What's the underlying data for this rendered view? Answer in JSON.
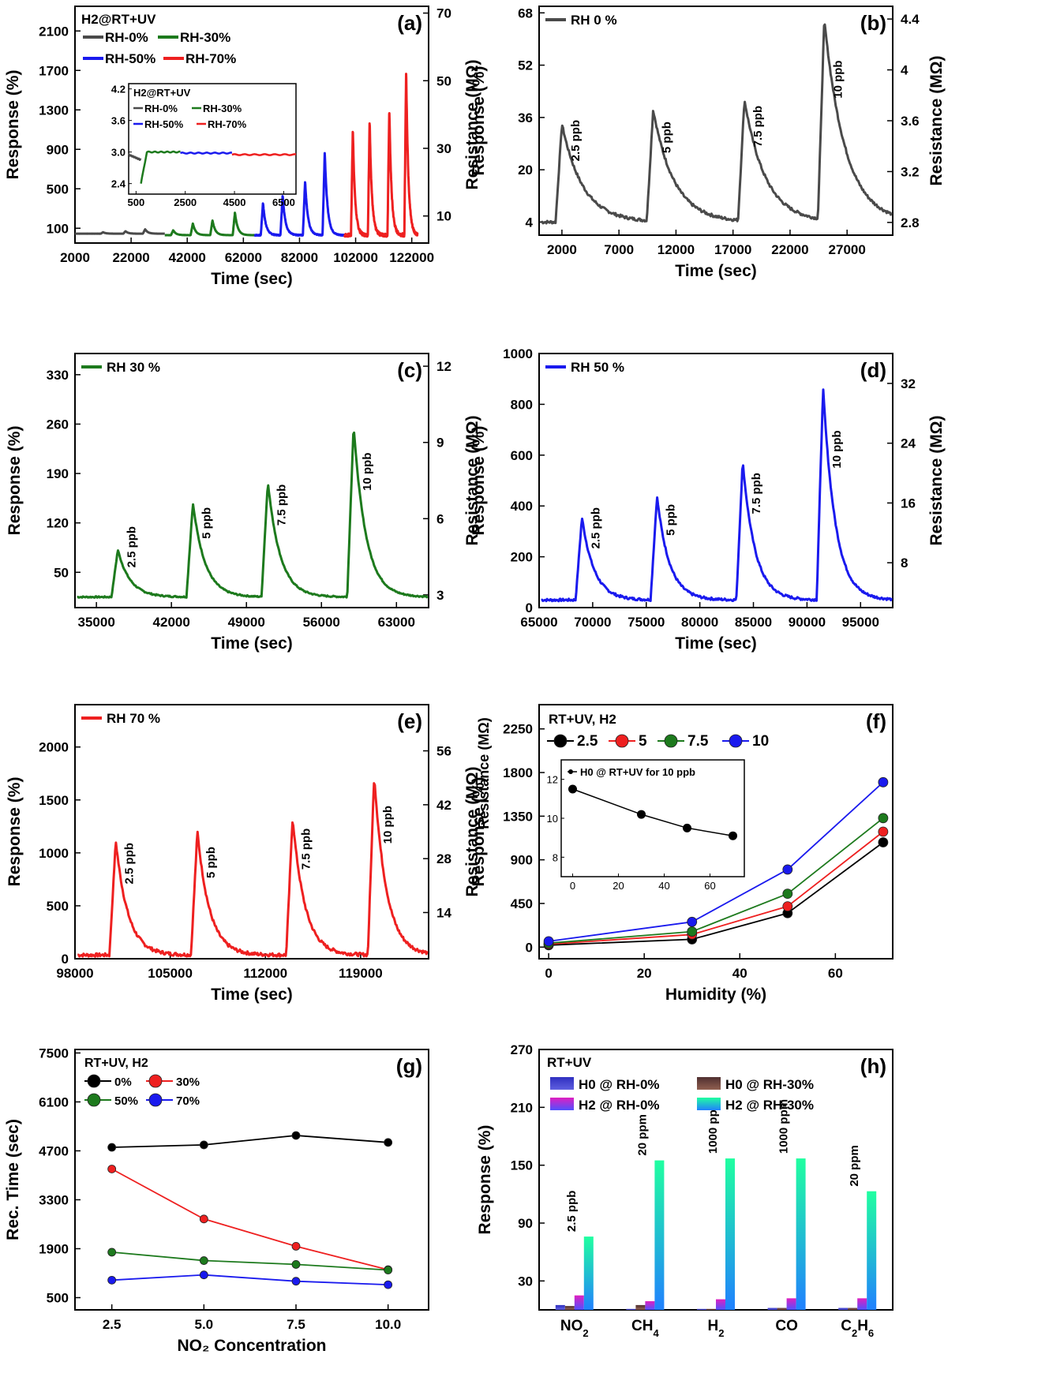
{
  "colors": {
    "c0": "#4a4a4a",
    "c30": "#1d7a1d",
    "c50": "#1a1aee",
    "c70": "#ee2020",
    "black": "#000000"
  },
  "chart_data": [
    {
      "id": "a",
      "type": "line",
      "panel_label": "(a)",
      "title": "H2@RT+UV",
      "xlabel": "Time (sec)",
      "ylabel": "Response (%)",
      "y2label": "Resistance (MΩ)",
      "xlim": [
        2000,
        128000
      ],
      "ylim": [
        -50,
        2350
      ],
      "y2lim": [
        2,
        72
      ],
      "xticks": [
        2000,
        22000,
        42000,
        62000,
        82000,
        102000,
        122000
      ],
      "yticks": [
        100,
        500,
        900,
        1300,
        1700,
        2100
      ],
      "y2ticks": [
        10,
        30,
        50,
        70
      ],
      "legend": [
        "RH-0%",
        "RH-30%",
        "RH-50%",
        "RH-70%"
      ],
      "legend_colors": [
        "c0",
        "c30",
        "c50",
        "c70"
      ],
      "segments": [
        {
          "name": "RH-0%",
          "color": "c0",
          "x0": 2000,
          "x1": 34000,
          "base": 45,
          "peaks": [
            [
              12000,
              60
            ],
            [
              20000,
              70
            ],
            [
              27000,
              90
            ]
          ]
        },
        {
          "name": "RH-30%",
          "color": "c30",
          "x0": 34000,
          "x1": 66000,
          "base": 30,
          "peaks": [
            [
              37000,
              80
            ],
            [
              44000,
              150
            ],
            [
              51000,
              180
            ],
            [
              59000,
              260
            ]
          ]
        },
        {
          "name": "RH-50%",
          "color": "c50",
          "x0": 66000,
          "x1": 98000,
          "base": 30,
          "peaks": [
            [
              69000,
              360
            ],
            [
              76000,
              440
            ],
            [
              84000,
              580
            ],
            [
              91000,
              870
            ]
          ]
        },
        {
          "name": "RH-70%",
          "color": "c70",
          "x0": 98000,
          "x1": 124000,
          "base": 30,
          "peaks": [
            [
              101000,
              1120
            ],
            [
              107000,
              1200
            ],
            [
              114000,
              1330
            ],
            [
              120000,
              1720
            ]
          ]
        }
      ],
      "inset": {
        "title": "H2@RT+UV",
        "legend": [
          "RH-0%",
          "RH-30%",
          "RH-50%",
          "RH-70%"
        ],
        "xlim": [
          200,
          7000
        ],
        "ylim": [
          2.2,
          4.3
        ],
        "xticks": [
          500,
          2500,
          4500,
          6500
        ],
        "yticks": [
          2.4,
          3.0,
          3.6,
          4.2
        ]
      }
    },
    {
      "id": "b",
      "type": "line",
      "panel_label": "(b)",
      "series_name": "RH 0 %",
      "color": "c0",
      "xlabel": "Time (sec)",
      "ylabel": "Response (%)",
      "y2label": "Resistance (MΩ)",
      "xlim": [
        0,
        31000
      ],
      "ylim": [
        0,
        70
      ],
      "y2lim": [
        2.7,
        4.5
      ],
      "xticks": [
        2000,
        7000,
        12000,
        17000,
        22000,
        27000
      ],
      "yticks": [
        4,
        20,
        36,
        52,
        68
      ],
      "y2ticks": [
        2.8,
        3.2,
        3.6,
        4.0,
        4.4
      ],
      "base": 4,
      "peaks": [
        [
          2000,
          34
        ],
        [
          10000,
          38
        ],
        [
          18000,
          41
        ],
        [
          25000,
          65
        ]
      ],
      "annotations": [
        "2.5 ppb",
        "5 ppb",
        "7.5 ppb",
        "10 ppb"
      ]
    },
    {
      "id": "c",
      "type": "line",
      "panel_label": "(c)",
      "series_name": "RH 30 %",
      "color": "c30",
      "xlabel": "Time (sec)",
      "ylabel": "Response (%)",
      "y2label": "Resistance (MΩ)",
      "xlim": [
        33000,
        66000
      ],
      "ylim": [
        0,
        360
      ],
      "y2lim": [
        2.5,
        12.5
      ],
      "xticks": [
        35000,
        42000,
        49000,
        56000,
        63000
      ],
      "yticks": [
        50,
        120,
        190,
        260,
        330
      ],
      "y2ticks": [
        3,
        6,
        9,
        12
      ],
      "base": 15,
      "peaks": [
        [
          37000,
          82
        ],
        [
          44000,
          148
        ],
        [
          51000,
          178
        ],
        [
          59000,
          258
        ]
      ],
      "annotations": [
        "2.5 ppb",
        "5 ppb",
        "7.5 ppb",
        "10 ppb"
      ]
    },
    {
      "id": "d",
      "type": "line",
      "panel_label": "(d)",
      "series_name": "RH 50 %",
      "color": "c50",
      "xlabel": "Time (sec)",
      "ylabel": "Response (%)",
      "y2label": "Resistance (MΩ)",
      "xlim": [
        65000,
        98000
      ],
      "ylim": [
        0,
        1000
      ],
      "y2lim": [
        2,
        36
      ],
      "xticks": [
        65000,
        70000,
        75000,
        80000,
        85000,
        90000,
        95000
      ],
      "yticks": [
        0,
        200,
        400,
        600,
        800,
        1000
      ],
      "y2ticks": [
        8,
        16,
        24,
        32
      ],
      "base": 30,
      "peaks": [
        [
          69000,
          355
        ],
        [
          76000,
          438
        ],
        [
          84000,
          575
        ],
        [
          91500,
          865
        ]
      ],
      "annotations": [
        "2.5 ppb",
        "5 ppb",
        "7.5 ppb",
        "10 ppb"
      ]
    },
    {
      "id": "e",
      "type": "line",
      "panel_label": "(e)",
      "series_name": "RH 70 %",
      "color": "c70",
      "xlabel": "Time (sec)",
      "ylabel": "Response (%)",
      "y2label": "Resistance (MΩ)",
      "xlim": [
        98000,
        124000
      ],
      "ylim": [
        0,
        2400
      ],
      "y2lim": [
        2,
        68
      ],
      "xticks": [
        98000,
        105000,
        112000,
        119000
      ],
      "yticks": [
        0,
        500,
        1000,
        1500,
        2000
      ],
      "y2ticks": [
        14,
        28,
        42,
        56
      ],
      "base": 35,
      "peaks": [
        [
          101000,
          1115
        ],
        [
          107000,
          1205
        ],
        [
          114000,
          1335
        ],
        [
          120000,
          1730
        ]
      ],
      "annotations": [
        "2.5 ppb",
        "5 ppb",
        "7.5 ppb",
        "10 ppb"
      ]
    },
    {
      "id": "f",
      "type": "line",
      "panel_label": "(f)",
      "title": "RT+UV, H2",
      "xlabel": "Humidity (%)",
      "ylabel": "Response (%)",
      "xlim": [
        -2,
        72
      ],
      "ylim": [
        -120,
        2500
      ],
      "xticks": [
        0,
        20,
        40,
        60
      ],
      "yticks": [
        0,
        450,
        900,
        1350,
        1800,
        2250
      ],
      "x": [
        0,
        30,
        50,
        70
      ],
      "series": [
        {
          "name": "2.5",
          "color": "black",
          "values": [
            20,
            80,
            350,
            1080
          ]
        },
        {
          "name": "5",
          "color": "c70",
          "values": [
            30,
            130,
            420,
            1190
          ]
        },
        {
          "name": "7.5",
          "color": "c30",
          "values": [
            40,
            160,
            550,
            1330
          ]
        },
        {
          "name": "10",
          "color": "c50",
          "values": [
            60,
            260,
            800,
            1700
          ]
        }
      ],
      "inset": {
        "legend": "H0 @ RT+UV  for 10 ppb",
        "x": [
          0,
          30,
          50,
          70
        ],
        "values": [
          11.5,
          10.2,
          9.5,
          9.1
        ],
        "xlim": [
          -5,
          75
        ],
        "ylim": [
          7,
          13
        ],
        "xticks": [
          0,
          20,
          40,
          60
        ],
        "yticks": [
          8,
          10,
          12
        ],
        "ylabel": "Resistance (MΩ)"
      }
    },
    {
      "id": "g",
      "type": "line",
      "panel_label": "(g)",
      "title": "RT+UV, H2",
      "xlabel": "NO₂ Concentration",
      "ylabel": "Rec. Time (sec)",
      "xlim": [
        1.5,
        11.1
      ],
      "ylim": [
        150,
        7600
      ],
      "xticks": [
        2.5,
        5.0,
        7.5,
        10.0
      ],
      "xticklabels": [
        "2.5",
        "5.0",
        "7.5",
        "10.0"
      ],
      "yticks": [
        500,
        1900,
        3300,
        4700,
        6100,
        7500
      ],
      "x": [
        2.5,
        5.0,
        7.5,
        10.0
      ],
      "series": [
        {
          "name": "0%",
          "color": "black",
          "values": [
            4800,
            4870,
            5140,
            4940
          ]
        },
        {
          "name": "30%",
          "color": "c70",
          "values": [
            4180,
            2750,
            1970,
            1300
          ]
        },
        {
          "name": "50%",
          "color": "c30",
          "values": [
            1800,
            1560,
            1450,
            1290
          ]
        },
        {
          "name": "70%",
          "color": "c50",
          "values": [
            1000,
            1150,
            970,
            870
          ]
        }
      ]
    },
    {
      "id": "h",
      "type": "bar",
      "panel_label": "(h)",
      "title": "RT+UV",
      "ylabel": "Response (%)",
      "ylim": [
        0,
        270
      ],
      "yticks": [
        30,
        90,
        150,
        210,
        270
      ],
      "categories": [
        "NO2",
        "CH4",
        "H2",
        "CO",
        "C2H6"
      ],
      "series": [
        {
          "name": "H0 @ RH-0%",
          "values": [
            5,
            1,
            1,
            2,
            2
          ]
        },
        {
          "name": "H0 @ RH-30%",
          "values": [
            4,
            5,
            1,
            2,
            2
          ]
        },
        {
          "name": "H2 @ RH-0%",
          "values": [
            15,
            9,
            11,
            12,
            12
          ]
        },
        {
          "name": "H2 @ RH-30%",
          "values": [
            76,
            155,
            157,
            157,
            123
          ]
        }
      ],
      "annotations": [
        "2.5 ppb",
        "20 ppm",
        "1000 ppm",
        "1000 ppm",
        "20 ppm"
      ]
    }
  ]
}
